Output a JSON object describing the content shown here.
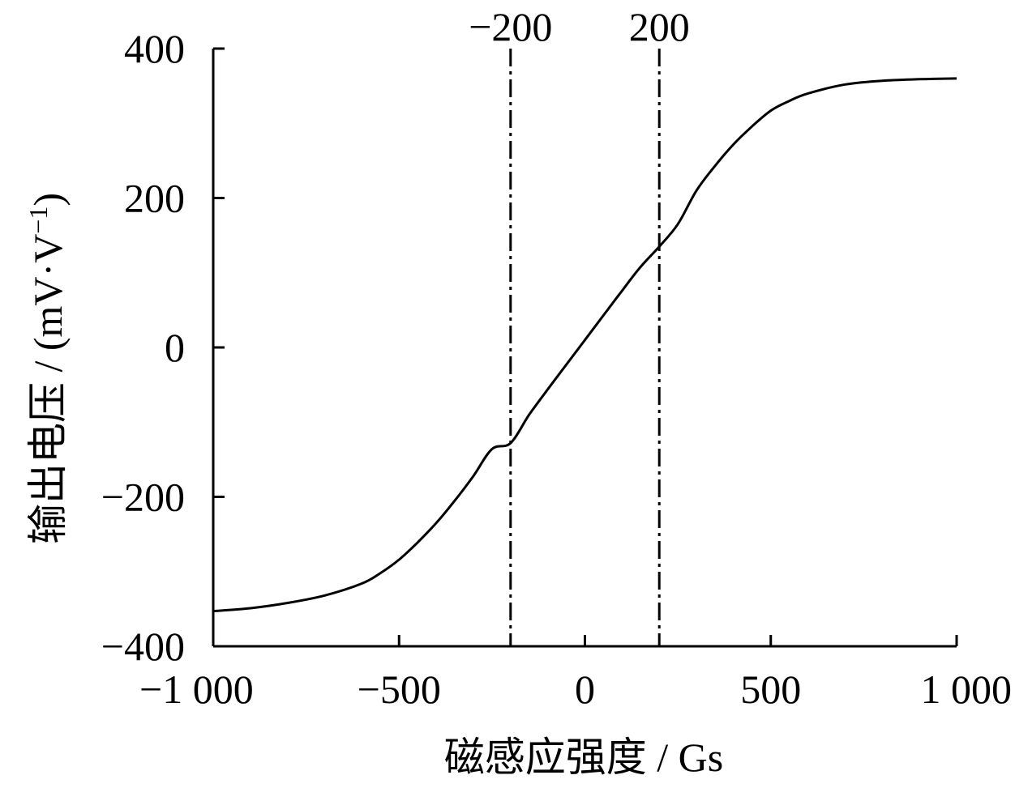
{
  "chart_data": {
    "type": "line",
    "xlabel": "磁感应强度 / Gs",
    "ylabel_main": "输出电压 / (mV·V",
    "ylabel_sup": "−1",
    "ylabel_close": ")",
    "xlim": [
      -1000,
      1000
    ],
    "ylim": [
      -400,
      400
    ],
    "x_ticks": [
      -1000,
      -500,
      0,
      500,
      1000
    ],
    "x_tick_labels": [
      "−1 000",
      "−500",
      "0",
      "500",
      "1 000"
    ],
    "y_ticks": [
      -400,
      -200,
      0,
      200,
      400
    ],
    "y_tick_labels": [
      "−400",
      "−200",
      "0",
      "200",
      "400"
    ],
    "grid": false,
    "legend": "none",
    "reference_lines": [
      {
        "x": -200,
        "label": "−200",
        "style": "dash-dot"
      },
      {
        "x": 200,
        "label": "200",
        "style": "dash-dot"
      }
    ],
    "series": [
      {
        "x": [
          -1000,
          -900,
          -800,
          -700,
          -600,
          -550,
          -500,
          -450,
          -400,
          -350,
          -300,
          -250,
          -200,
          -150,
          -100,
          -50,
          0,
          50,
          100,
          150,
          200,
          250,
          300,
          350,
          400,
          450,
          500,
          550,
          600,
          700,
          800,
          900,
          1000
        ],
        "y": [
          -353,
          -349,
          -342,
          -332,
          -316,
          -302,
          -284,
          -261,
          -235,
          -205,
          -172,
          -136,
          -128,
          -90,
          -56,
          -23,
          10,
          43,
          76,
          108,
          135,
          165,
          210,
          243,
          272,
          296,
          317,
          330,
          340,
          352,
          357,
          359,
          360
        ]
      }
    ],
    "color": "#000000"
  }
}
